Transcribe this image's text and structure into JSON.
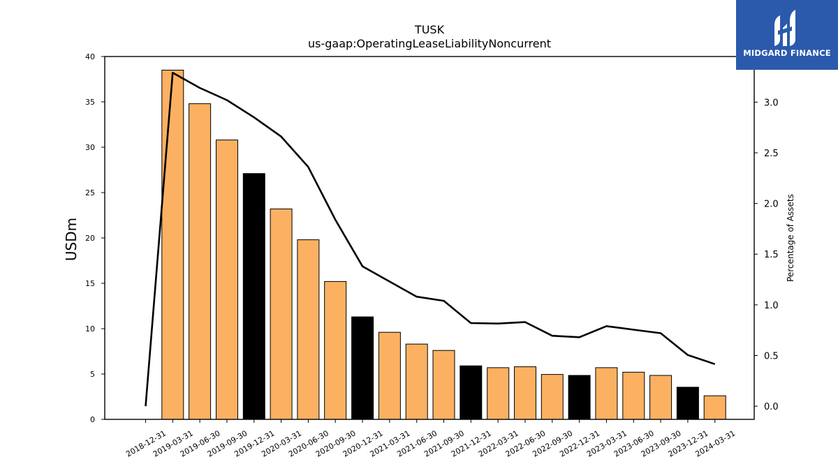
{
  "chart_data": {
    "type": "bar",
    "title": "TUSK",
    "subtitle": "us-gaap:OperatingLeaseLiabilityNoncurrent",
    "ylabel": "USDm",
    "y2label": "Percentage of Assets",
    "ylim": [
      0,
      40
    ],
    "y2lim": [
      -0.13,
      3.45
    ],
    "yticks": [
      0,
      5,
      10,
      15,
      20,
      25,
      30,
      35,
      40
    ],
    "y2ticks": [
      0.0,
      0.5,
      1.0,
      1.5,
      2.0,
      2.5,
      3.0
    ],
    "categories": [
      "2018-12-31",
      "2019-03-31",
      "2019-06-30",
      "2019-09-30",
      "2019-12-31",
      "2020-03-31",
      "2020-06-30",
      "2020-09-30",
      "2020-12-31",
      "2021-03-31",
      "2021-06-30",
      "2021-09-30",
      "2021-12-31",
      "2022-03-31",
      "2022-06-30",
      "2022-09-30",
      "2022-12-31",
      "2023-03-31",
      "2023-06-30",
      "2023-09-30",
      "2023-12-31",
      "2024-03-31"
    ],
    "series": [
      {
        "type": "bar",
        "values": [
          0,
          38.5,
          34.8,
          30.8,
          27.1,
          23.2,
          19.8,
          15.2,
          11.3,
          9.6,
          8.3,
          7.6,
          5.9,
          5.7,
          5.8,
          4.95,
          4.85,
          5.7,
          5.2,
          4.85,
          3.55,
          2.6
        ],
        "colors": [
          "#fbb161",
          "#fbb161",
          "#fbb161",
          "#fbb161",
          "#000000",
          "#fbb161",
          "#fbb161",
          "#fbb161",
          "#000000",
          "#fbb161",
          "#fbb161",
          "#fbb161",
          "#000000",
          "#fbb161",
          "#fbb161",
          "#fbb161",
          "#000000",
          "#fbb161",
          "#fbb161",
          "#fbb161",
          "#000000",
          "#fbb161"
        ]
      },
      {
        "type": "line",
        "axis": "right",
        "values": [
          0.0,
          3.29,
          3.14,
          3.02,
          2.85,
          2.66,
          2.36,
          1.84,
          1.38,
          1.23,
          1.08,
          1.04,
          0.82,
          0.815,
          0.83,
          0.695,
          0.68,
          0.79,
          0.755,
          0.72,
          0.505,
          0.415
        ],
        "color": "#000000"
      }
    ],
    "grid": false
  },
  "logo": {
    "text": "MIDGARD FINANCE",
    "background": "#2b5aad"
  }
}
